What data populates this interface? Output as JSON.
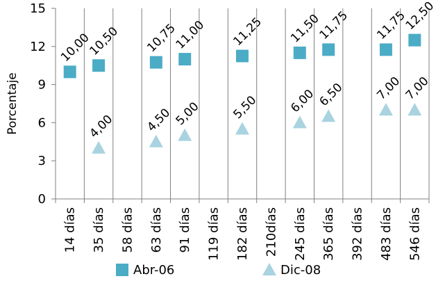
{
  "chart_data": {
    "type": "scatter",
    "ylabel": "Porcentaje",
    "xlabel": "",
    "ylim": [
      0,
      15
    ],
    "yticks": [
      0,
      3,
      6,
      9,
      12,
      15
    ],
    "grid": "vertical",
    "legend_position": "bottom",
    "categories": [
      "14 días",
      "35 días",
      "58 días",
      "63 días",
      "91 días",
      "119 días",
      "182 días",
      "210días",
      "245 días",
      "365 días",
      "392 días",
      "483 días",
      "546 días"
    ],
    "series": [
      {
        "name": "Abr-06",
        "marker": "square",
        "color": "#4bacc6",
        "values": [
          10.0,
          10.5,
          null,
          10.75,
          11.0,
          null,
          11.25,
          null,
          11.5,
          11.75,
          null,
          11.75,
          12.5
        ],
        "labels": [
          "10,00",
          "10,50",
          null,
          "10,75",
          "11,00",
          null,
          "11,25",
          null,
          "11,50",
          "11,75",
          null,
          "11,75",
          "12,50"
        ]
      },
      {
        "name": "Dic-08",
        "marker": "triangle",
        "color": "#a9d3e0",
        "values": [
          null,
          4.0,
          null,
          4.5,
          5.0,
          null,
          5.5,
          null,
          6.0,
          6.5,
          null,
          7.0,
          7.0
        ],
        "labels": [
          null,
          "4,00",
          null,
          "4,50",
          "5,00",
          null,
          "5,50",
          null,
          "6,00",
          "6,50",
          null,
          "7,00",
          "7,00"
        ]
      }
    ]
  }
}
